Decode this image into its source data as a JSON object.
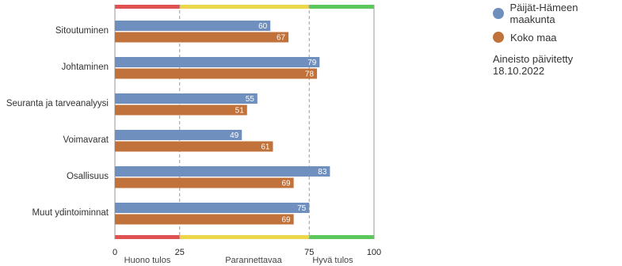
{
  "chart_data": {
    "type": "bar",
    "orientation": "horizontal",
    "categories": [
      "Sitoutuminen",
      "Johtaminen",
      "Seuranta ja tarveanalyysi",
      "Voimavarat",
      "Osallisuus",
      "Muut ydintoiminnat"
    ],
    "series": [
      {
        "name": "Päijät-Hämeen maakunta",
        "color": "#6f8fbf",
        "values": [
          60,
          79,
          55,
          49,
          83,
          75
        ]
      },
      {
        "name": "Koko maa",
        "color": "#c0723a",
        "values": [
          67,
          78,
          51,
          61,
          69,
          69
        ]
      }
    ],
    "xlim": [
      0,
      100
    ],
    "xticks": [
      0,
      25,
      75,
      100
    ],
    "bands": [
      {
        "from": 0,
        "to": 25,
        "color": "#e05252",
        "label": "Huono tulos"
      },
      {
        "from": 25,
        "to": 75,
        "color": "#ecd64a",
        "label": "Parannettavaa"
      },
      {
        "from": 75,
        "to": 100,
        "color": "#5cc85c",
        "label": "Hyvä tulos"
      }
    ],
    "grid": "dashed vertical at band boundaries",
    "legend_position": "top-right"
  },
  "legend": {
    "items": [
      {
        "label": "Päijät-Hämeen maakunta",
        "color": "#6f8fbf"
      },
      {
        "label": "Koko maa",
        "color": "#c0723a"
      }
    ],
    "note": "Aineisto päivitetty 18.10.2022"
  }
}
